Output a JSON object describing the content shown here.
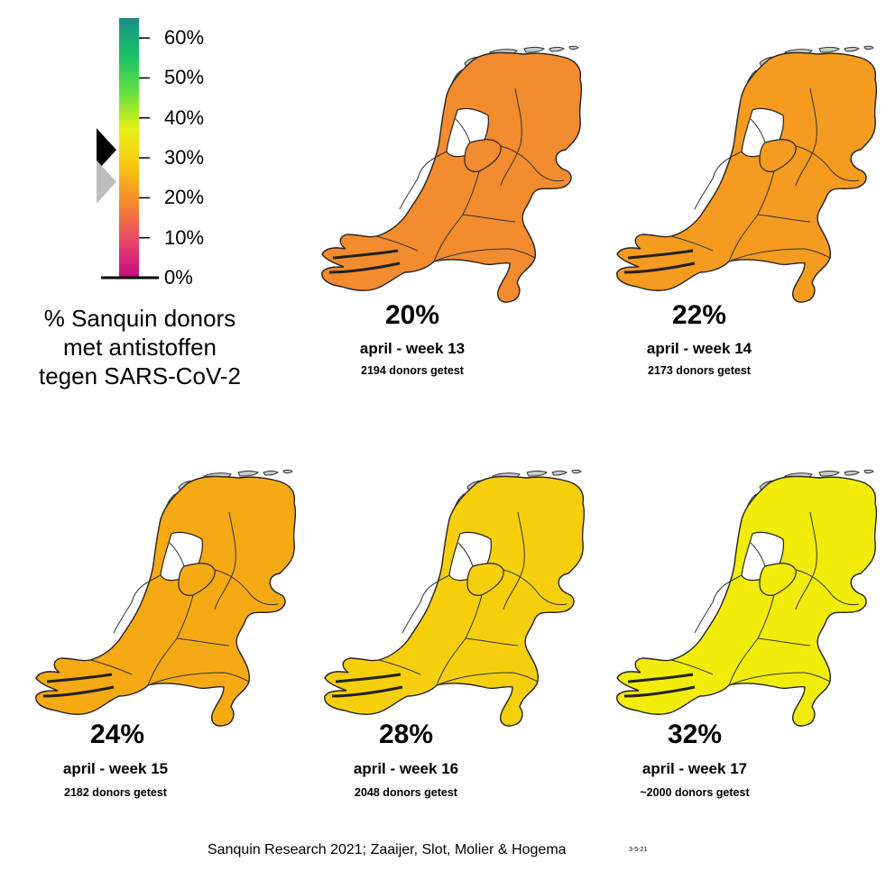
{
  "legend": {
    "ticks": [
      "60%",
      "50%",
      "40%",
      "30%",
      "20%",
      "10%",
      "0%"
    ],
    "title_lines": [
      "% Sanquin donors",
      "met antistoffen",
      "tegen SARS-CoV-2"
    ],
    "marker_current_value": 32,
    "marker_previous_value": 24,
    "scale_max": 65,
    "gradient_colors": [
      "#c40a7e",
      "#e94869",
      "#f5882d",
      "#f8c513",
      "#e6f212",
      "#64e040",
      "#1abf6a",
      "#198e86"
    ]
  },
  "panels": [
    {
      "percentage": "20%",
      "week": "april - week 13",
      "donors": "2194 donors getest",
      "color": "#f38b2f"
    },
    {
      "percentage": "22%",
      "week": "april - week 14",
      "donors": "2173 donors getest",
      "color": "#f59b1f"
    },
    {
      "percentage": "24%",
      "week": "april - week 15",
      "donors": "2182 donors getest",
      "color": "#f5aa14"
    },
    {
      "percentage": "28%",
      "week": "april - week 16",
      "donors": "2048 donors getest",
      "color": "#f6cf0c"
    },
    {
      "percentage": "32%",
      "week": "april - week 17",
      "donors": "~2000 donors getest",
      "color": "#f1ec0a"
    }
  ],
  "credit": {
    "text": "Sanquin Research 2021; Zaaijer, Slot, Molier & Hogema",
    "date": "3-5-21"
  }
}
